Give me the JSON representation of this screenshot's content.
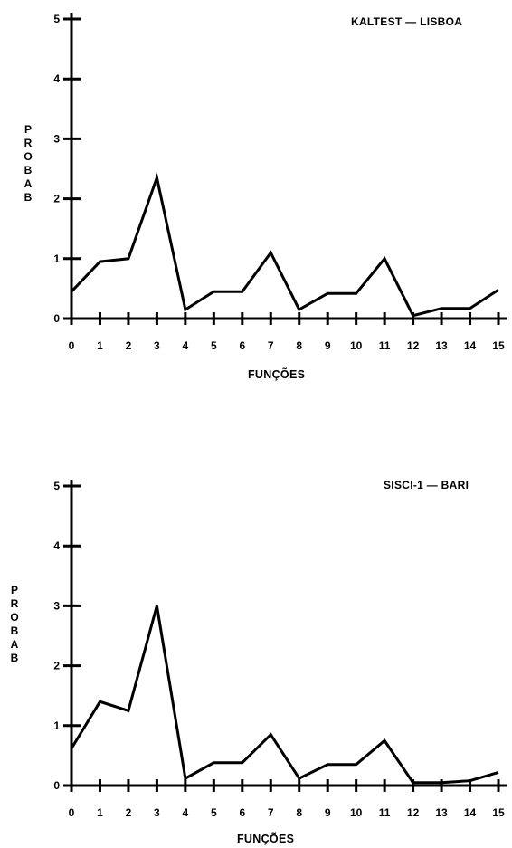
{
  "chart_data": [
    {
      "type": "line",
      "title": "KALTEST — LISBOA",
      "xlabel": "FUNÇÕES",
      "ylabel": "PROBAB",
      "x": [
        0,
        1,
        2,
        3,
        4,
        5,
        6,
        7,
        8,
        9,
        10,
        11,
        12,
        13,
        14,
        15
      ],
      "x_tick_labels": [
        "0",
        "1",
        "2",
        "3",
        "4",
        "5",
        "6",
        "7",
        "8",
        "9",
        "10",
        "11",
        "12",
        "13",
        "14",
        "15"
      ],
      "y_tick_labels": [
        "0",
        "1",
        "2",
        "3",
        "4",
        "5"
      ],
      "y": [
        0.45,
        0.95,
        1.0,
        2.35,
        0.15,
        0.45,
        0.45,
        1.1,
        0.15,
        0.42,
        0.42,
        1.0,
        0.05,
        0.17,
        0.17,
        0.48
      ],
      "xlim": [
        0,
        15
      ],
      "ylim": [
        0,
        5
      ],
      "grid": false
    },
    {
      "type": "line",
      "title": "SISCI-1 — BARI",
      "xlabel": "FUNÇÕES",
      "ylabel": "PROBAB",
      "x": [
        0,
        1,
        2,
        3,
        4,
        5,
        6,
        7,
        8,
        9,
        10,
        11,
        12,
        13,
        14,
        15
      ],
      "x_tick_labels": [
        "0",
        "1",
        "2",
        "3",
        "4",
        "5",
        "6",
        "7",
        "8",
        "9",
        "10",
        "11",
        "12",
        "13",
        "14",
        "15"
      ],
      "y_tick_labels": [
        "0",
        "1",
        "2",
        "3",
        "4",
        "5"
      ],
      "y": [
        0.62,
        1.4,
        1.25,
        3.0,
        0.12,
        0.38,
        0.38,
        0.85,
        0.12,
        0.35,
        0.35,
        0.75,
        0.05,
        0.05,
        0.08,
        0.22
      ],
      "xlim": [
        0,
        15
      ],
      "ylim": [
        0,
        5
      ],
      "grid": false
    }
  ]
}
